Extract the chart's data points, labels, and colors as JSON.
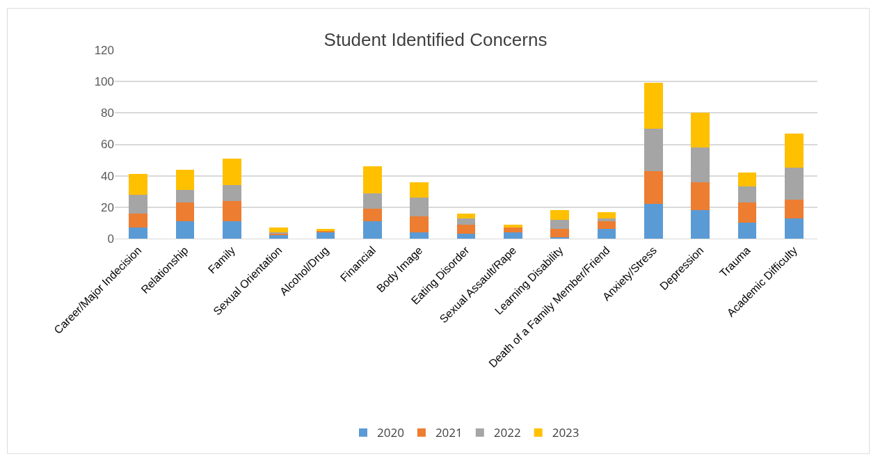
{
  "chart_data": {
    "type": "bar",
    "title": "Student Identified Concerns",
    "stacked": true,
    "categories": [
      "Career/Major Indecision",
      "Relationship",
      "Family",
      "Sexual Orientation",
      "Alcohol/Drug",
      "Financial",
      "Body Image",
      "Eating Disorder",
      "Sexual Assault/Rape",
      "Learning Disability",
      "Death of a Family Member/Friend",
      "Anxiety/Stress",
      "Depression",
      "Trauma",
      "Academic Difficulty"
    ],
    "series": [
      {
        "name": "2020",
        "color": "#5b9bd5",
        "values": [
          7,
          11,
          11,
          2,
          4,
          11,
          4,
          3,
          4,
          1,
          6,
          22,
          18,
          10,
          13
        ]
      },
      {
        "name": "2021",
        "color": "#ed7d31",
        "values": [
          9,
          12,
          13,
          1,
          1,
          8,
          10,
          6,
          3,
          5,
          5,
          21,
          18,
          13,
          12
        ]
      },
      {
        "name": "2022",
        "color": "#a5a5a5",
        "values": [
          12,
          8,
          10,
          1,
          0,
          10,
          12,
          4,
          0,
          6,
          2,
          27,
          22,
          10,
          20
        ]
      },
      {
        "name": "2023",
        "color": "#ffc000",
        "values": [
          13,
          13,
          17,
          3,
          1,
          17,
          10,
          3,
          2,
          6,
          4,
          29,
          22,
          9,
          22
        ]
      }
    ],
    "ylim": [
      0,
      120
    ],
    "yticks": [
      0,
      20,
      40,
      60,
      80,
      100,
      120
    ],
    "grid": "y",
    "legend": "bottom"
  }
}
